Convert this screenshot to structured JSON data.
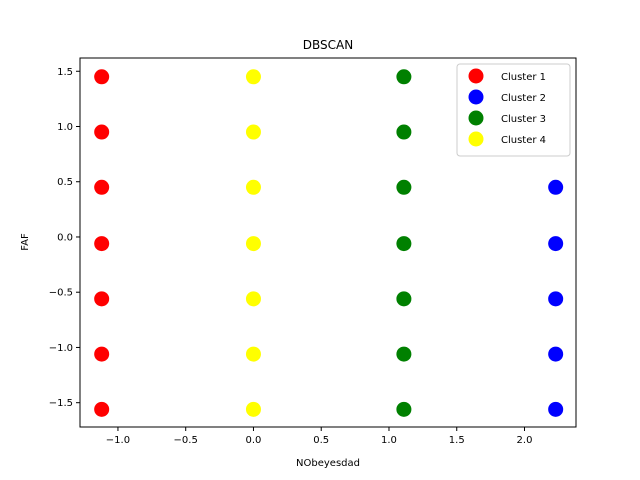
{
  "chart_data": {
    "type": "scatter",
    "title": "DBSCAN",
    "xlabel": "NObeyesdad",
    "ylabel": "FAF",
    "xlim": [
      -1.28,
      2.38
    ],
    "ylim": [
      -1.72,
      1.62
    ],
    "xticks": [
      -1.0,
      -0.5,
      0.0,
      0.5,
      1.0,
      1.5,
      2.0
    ],
    "xtick_labels": [
      "−1.0",
      "−0.5",
      "0.0",
      "0.5",
      "1.0",
      "1.5",
      "2.0"
    ],
    "yticks": [
      -1.5,
      -1.0,
      -0.5,
      0.0,
      0.5,
      1.0,
      1.5
    ],
    "ytick_labels": [
      "−1.5",
      "−1.0",
      "−0.5",
      "0.0",
      "0.5",
      "1.0",
      "1.5"
    ],
    "grid": false,
    "legend_position": "top-right",
    "series": [
      {
        "name": "Cluster 1",
        "color": "#ff0000",
        "points": [
          [
            -1.12,
            1.45
          ],
          [
            -1.12,
            0.95
          ],
          [
            -1.12,
            0.45
          ],
          [
            -1.12,
            -0.06
          ],
          [
            -1.12,
            -0.56
          ],
          [
            -1.12,
            -1.06
          ],
          [
            -1.12,
            -1.56
          ]
        ]
      },
      {
        "name": "Cluster 2",
        "color": "#0000ff",
        "points": [
          [
            2.23,
            0.45
          ],
          [
            2.23,
            -0.06
          ],
          [
            2.23,
            -0.56
          ],
          [
            2.23,
            -1.06
          ],
          [
            2.23,
            -1.56
          ]
        ]
      },
      {
        "name": "Cluster 3",
        "color": "#008000",
        "points": [
          [
            1.11,
            1.45
          ],
          [
            1.11,
            0.95
          ],
          [
            1.11,
            0.45
          ],
          [
            1.11,
            -0.06
          ],
          [
            1.11,
            -0.56
          ],
          [
            1.11,
            -1.06
          ],
          [
            1.11,
            -1.56
          ]
        ]
      },
      {
        "name": "Cluster 4",
        "color": "#ffff00",
        "points": [
          [
            0.0,
            1.45
          ],
          [
            0.0,
            0.95
          ],
          [
            0.0,
            0.45
          ],
          [
            0.0,
            -0.06
          ],
          [
            0.0,
            -0.56
          ],
          [
            0.0,
            -1.06
          ],
          [
            0.0,
            -1.56
          ]
        ]
      }
    ]
  }
}
